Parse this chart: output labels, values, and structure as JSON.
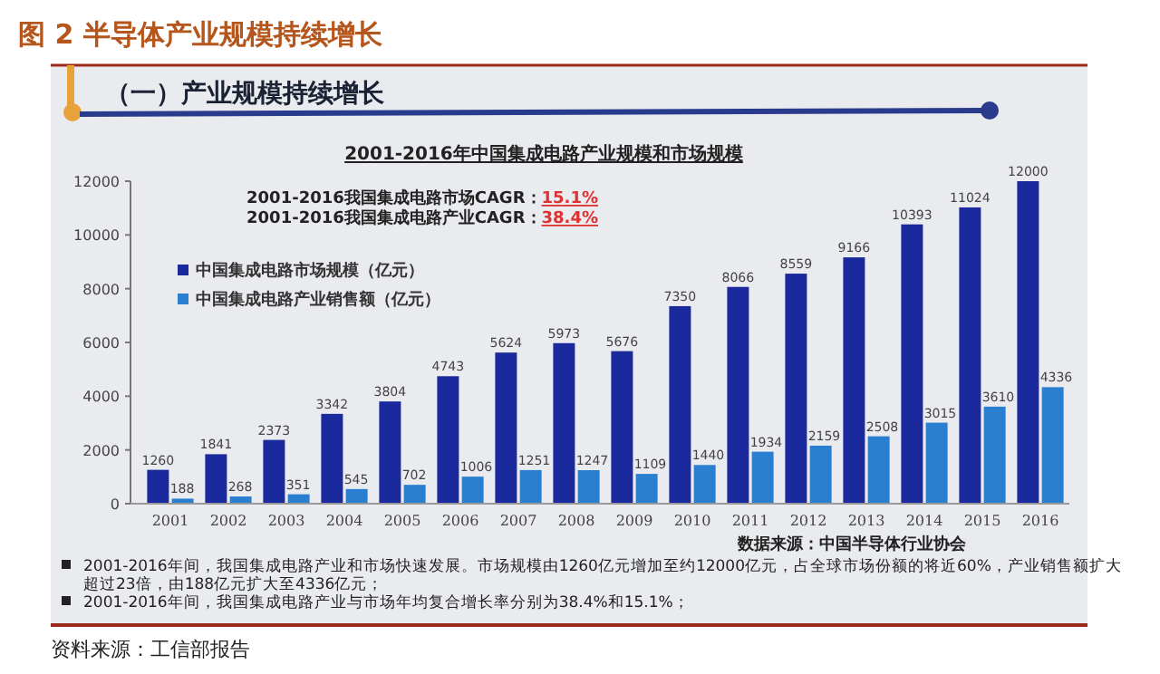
{
  "chart_data": {
    "type": "bar",
    "title": "图 2 半导体产业规模持续增长",
    "subtitle": "（一）产业规模持续增长",
    "xlabel": "2001-2016年中国集成电路产业规模和市场规模",
    "categories": [
      "2001",
      "2002",
      "2003",
      "2004",
      "2005",
      "2006",
      "2007",
      "2008",
      "2009",
      "2010",
      "2011",
      "2012",
      "2013",
      "2014",
      "2015",
      "2016"
    ],
    "series": [
      {
        "name": "中国集成电路市场规模（亿元）",
        "color": "#1a2a9c",
        "values": [
          1260,
          1841,
          2373,
          3342,
          3804,
          4743,
          5624,
          5973,
          5676,
          7350,
          8066,
          8559,
          9166,
          10393,
          11024,
          12000
        ]
      },
      {
        "name": "中国集成电路产业销售额（亿元）",
        "color": "#2a7fd0",
        "values": [
          188,
          268,
          351,
          545,
          702,
          1006,
          1251,
          1247,
          1109,
          1440,
          1934,
          2159,
          2508,
          3015,
          3610,
          4336
        ]
      }
    ],
    "ylim": [
      0,
      12000
    ],
    "yticks": [
      0,
      2000,
      4000,
      6000,
      8000,
      10000,
      12000
    ],
    "data_labels": true,
    "legend": "top left",
    "grid": false,
    "annotations": [
      "2001-2016我国集成电路市场CAGR：15.1%",
      "2001-2016我国集成电路产业CAGR：38.4%",
      "数据来源：中国半导体行业协会",
      "2001-2016年间，我国集成电路产业和市场快速发展。市场规模由1260亿元增加至约12000亿元，占全球市场份额的将近60%，产业销售额扩大超过23倍，由188亿元扩大至4336亿元；",
      "2001-2016年间，我国集成电路产业与市场年均复合增长率分别为38.4%和15.1%；",
      "资料来源：工信部报告"
    ]
  }
}
